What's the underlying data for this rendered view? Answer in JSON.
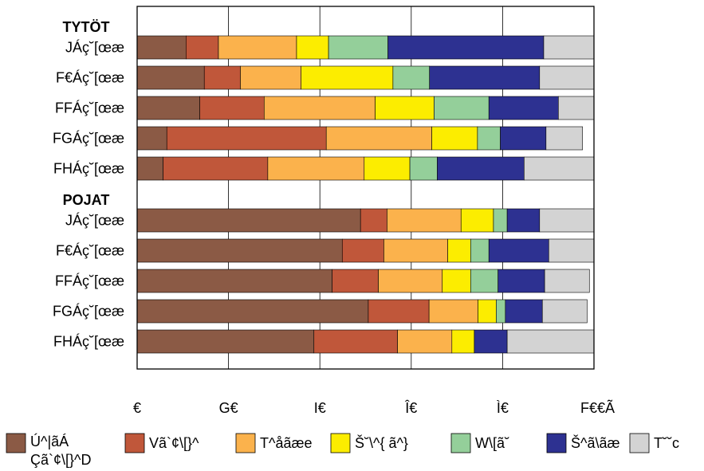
{
  "chart_data": {
    "type": "bar",
    "orientation": "horizontal",
    "stacked": true,
    "groups": [
      {
        "title": "TYTÖT",
        "rows": [
          "JÁç˘[œæ",
          "F€Áç˘[œæ",
          "FFÁç˘[œæ",
          "FGÁç˘[œæ",
          "FHÁç˘[œæ"
        ]
      },
      {
        "title": "POJAT",
        "rows": [
          "JÁç˘[œæ",
          "F€Áç˘[œæ",
          "FFÁç˘[œæ",
          "FGÁç˘[œæ",
          "FHÁç˘[œæ"
        ]
      }
    ],
    "series": [
      {
        "name": "Ú^|ãÁ Çã`¢\\[}^D",
        "color": "#8B5A45",
        "values": [
          10.7,
          14.7,
          13.7,
          6.5,
          5.7,
          48.9,
          44.9,
          42.7,
          50.6,
          38.7
        ]
      },
      {
        "name": "Vã`¢\\[}^",
        "color": "#C0573A",
        "values": [
          7.1,
          7.9,
          14.1,
          34.9,
          22.9,
          5.8,
          9.1,
          10.1,
          13.3,
          18.3
        ]
      },
      {
        "name": "T^åãæe",
        "color": "#FBB24C",
        "values": [
          17.1,
          13.3,
          24.3,
          23.1,
          21.1,
          16.2,
          14.0,
          14.0,
          10.7,
          11.9
        ]
      },
      {
        "name": "Š˘\\^{ ã^}",
        "color": "#FCED00",
        "values": [
          7.0,
          20.1,
          12.9,
          10.0,
          10.0,
          7.1,
          5.0,
          6.2,
          4.0,
          4.9
        ]
      },
      {
        "name": "W\\[ã˘",
        "color": "#94CF9A",
        "values": [
          13.0,
          8.0,
          12.0,
          5.0,
          6.0,
          3.0,
          4.0,
          6.0,
          2.0,
          0.0
        ]
      },
      {
        "name": "Š^ã\\ãæ",
        "color": "#2D3191",
        "values": [
          34.1,
          24.1,
          15.2,
          10.0,
          19.0,
          7.1,
          13.1,
          10.2,
          8.1,
          7.2
        ]
      },
      {
        "name": "T˘˘c",
        "color": "#D3D3D3",
        "values": [
          11.0,
          11.9,
          7.8,
          8.0,
          15.3,
          11.9,
          9.9,
          9.8,
          9.8,
          19.0
        ]
      }
    ],
    "xlim": [
      0,
      100
    ],
    "xticks": [
      "€",
      "G€",
      "I€",
      "Î€",
      "Ì€",
      "F€€Ã"
    ],
    "grid": true,
    "legend_position": "bottom"
  }
}
